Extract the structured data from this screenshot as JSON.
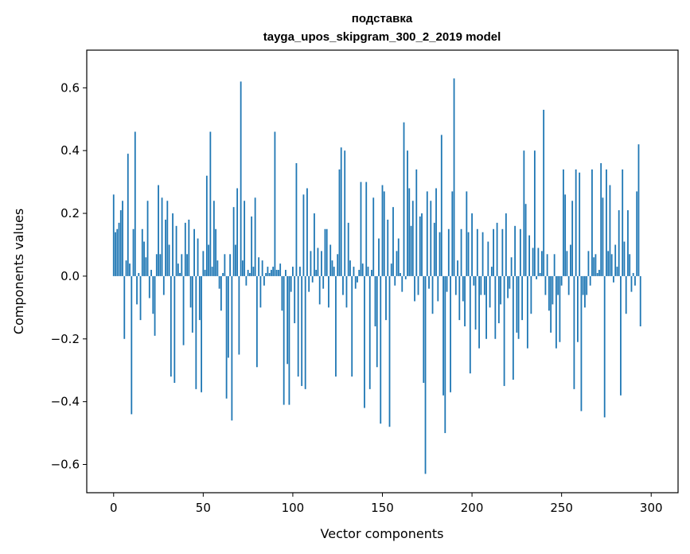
{
  "chart_data": {
    "type": "bar",
    "title_line1": "подставка",
    "title_line2": "tayga_upos_skipgram_300_2_2019 model",
    "xlabel": "Vector components",
    "ylabel": "Components values",
    "xlim": [
      -15,
      315
    ],
    "ylim": [
      -0.69,
      0.72
    ],
    "xticks": [
      0,
      50,
      100,
      150,
      200,
      250,
      300
    ],
    "yticks": [
      -0.6,
      -0.4,
      -0.2,
      0.0,
      0.2,
      0.4,
      0.6
    ],
    "ytick_labels": [
      "−0.6",
      "−0.4",
      "−0.2",
      "0.0",
      "0.2",
      "0.4",
      "0.6"
    ],
    "bar_color": "#1f77b4",
    "grid": false,
    "values": [
      0.26,
      0.14,
      0.15,
      0.17,
      0.21,
      0.24,
      -0.2,
      0.05,
      0.39,
      0.04,
      -0.44,
      0.15,
      0.46,
      -0.09,
      0.01,
      -0.14,
      0.15,
      0.11,
      0.06,
      0.24,
      -0.07,
      0.02,
      -0.12,
      -0.19,
      0.07,
      0.29,
      0.07,
      0.25,
      -0.06,
      0.18,
      0.24,
      0.1,
      -0.32,
      0.2,
      -0.34,
      0.16,
      0.04,
      0.01,
      0.07,
      -0.22,
      0.17,
      0.07,
      0.18,
      -0.1,
      -0.18,
      0.15,
      -0.36,
      0.12,
      -0.14,
      -0.37,
      0.08,
      0.02,
      0.32,
      0.1,
      0.46,
      0.03,
      0.24,
      0.15,
      0.05,
      -0.04,
      -0.11,
      0.01,
      0.07,
      -0.39,
      -0.26,
      0.07,
      -0.46,
      0.22,
      0.1,
      0.28,
      -0.25,
      0.62,
      0.05,
      0.24,
      -0.03,
      0.02,
      0.01,
      0.19,
      0.03,
      0.25,
      -0.29,
      0.06,
      -0.1,
      0.05,
      -0.03,
      0.01,
      0.03,
      0.01,
      0.02,
      0.03,
      0.46,
      0.02,
      0.02,
      0.04,
      -0.11,
      -0.41,
      0.02,
      -0.28,
      -0.41,
      -0.05,
      0.03,
      -0.15,
      0.36,
      -0.32,
      0.03,
      -0.35,
      0.26,
      -0.36,
      0.28,
      -0.05,
      0.08,
      -0.02,
      0.2,
      0.02,
      0.09,
      -0.09,
      0.08,
      -0.04,
      0.15,
      0.15,
      -0.1,
      0.1,
      0.05,
      0.03,
      -0.32,
      0.07,
      0.34,
      0.41,
      -0.06,
      0.4,
      -0.1,
      0.17,
      0.05,
      -0.32,
      0.03,
      -0.04,
      -0.02,
      0.02,
      0.3,
      0.04,
      -0.42,
      0.3,
      0.03,
      -0.36,
      0.02,
      0.25,
      -0.16,
      -0.29,
      0.12,
      -0.47,
      0.29,
      0.27,
      -0.14,
      0.18,
      -0.48,
      0.04,
      0.22,
      -0.03,
      0.08,
      0.12,
      0.01,
      -0.05,
      0.49,
      -0.01,
      0.4,
      0.28,
      0.16,
      0.24,
      -0.08,
      0.34,
      -0.06,
      0.19,
      0.2,
      -0.34,
      -0.63,
      0.27,
      -0.04,
      0.24,
      -0.12,
      0.17,
      0.28,
      -0.08,
      0.14,
      0.45,
      -0.38,
      -0.5,
      -0.05,
      0.15,
      -0.37,
      0.27,
      0.63,
      -0.06,
      0.05,
      -0.14,
      0.15,
      -0.08,
      -0.16,
      0.27,
      0.14,
      -0.31,
      0.2,
      -0.03,
      -0.17,
      0.15,
      -0.23,
      -0.06,
      0.14,
      -0.06,
      -0.2,
      0.11,
      -0.1,
      0.03,
      0.15,
      -0.2,
      0.17,
      -0.15,
      -0.09,
      0.15,
      -0.35,
      0.2,
      -0.07,
      -0.04,
      0.06,
      -0.33,
      0.16,
      -0.18,
      -0.2,
      0.15,
      -0.14,
      0.4,
      0.23,
      -0.23,
      0.13,
      -0.12,
      0.09,
      0.4,
      -0.01,
      0.09,
      0.01,
      0.08,
      0.53,
      -0.06,
      0.07,
      -0.11,
      -0.18,
      -0.09,
      0.07,
      -0.23,
      -0.06,
      -0.21,
      -0.03,
      0.34,
      0.26,
      0.08,
      -0.06,
      0.1,
      0.24,
      -0.36,
      0.34,
      -0.21,
      0.33,
      -0.43,
      -0.06,
      -0.1,
      -0.06,
      0.08,
      -0.03,
      0.34,
      0.06,
      0.07,
      0.01,
      0.02,
      0.36,
      0.25,
      -0.45,
      0.34,
      0.08,
      0.29,
      0.07,
      -0.02,
      0.1,
      0.03,
      0.21,
      -0.38,
      0.34,
      0.11,
      -0.12,
      0.21,
      0.07,
      -0.05,
      0.01,
      -0.03,
      0.27,
      0.42,
      -0.16
    ]
  }
}
